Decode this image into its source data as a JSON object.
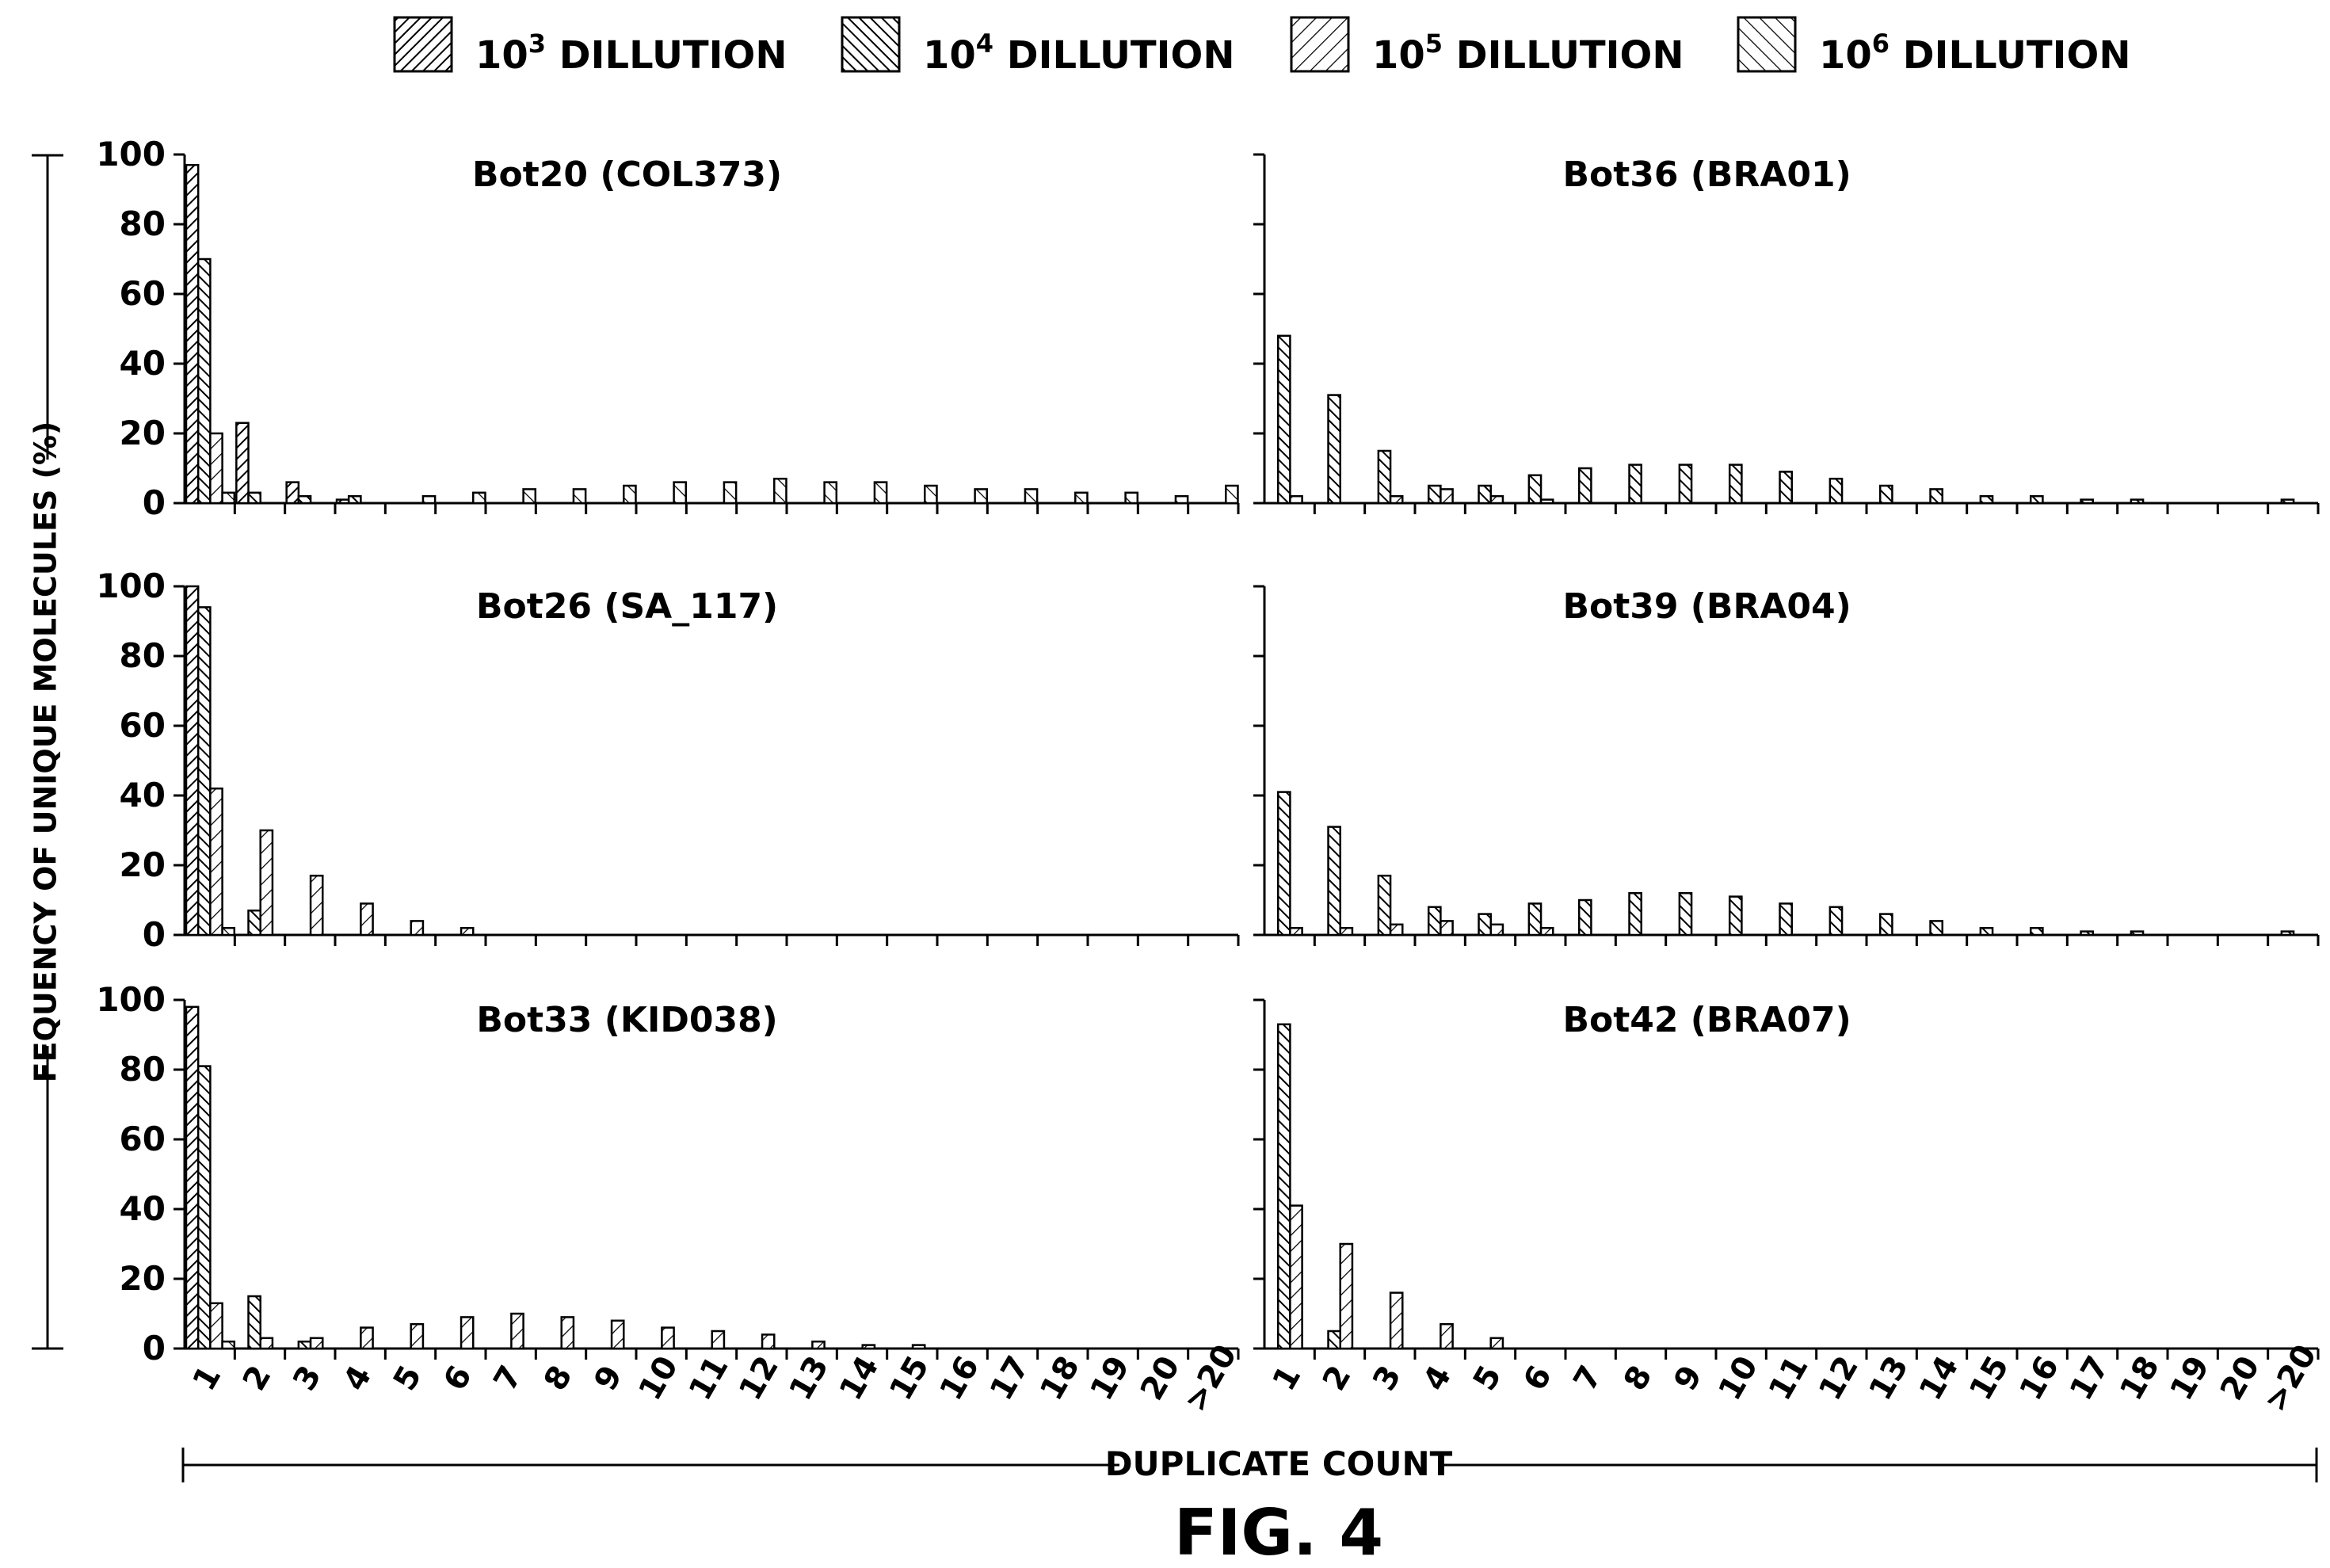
{
  "figure_label": "FIG. 4",
  "ylabel": "FEQUENCY OF UNIQUE MOLECULES (%)",
  "xlabel": "DUPLICATE COUNT",
  "legend": [
    {
      "base": "10",
      "exp": "3",
      "text": "DILLUTION"
    },
    {
      "base": "10",
      "exp": "4",
      "text": "DILLUTION"
    },
    {
      "base": "10",
      "exp": "5",
      "text": "DILLUTION"
    },
    {
      "base": "10",
      "exp": "6",
      "text": "DILLUTION"
    }
  ],
  "chart_data": [
    {
      "type": "bar",
      "title": "Bot20 (COL373)",
      "categories": [
        "1",
        "2",
        "3",
        "4",
        "5",
        "6",
        "7",
        "8",
        "9",
        "10",
        "11",
        "12",
        "13",
        "14",
        "15",
        "16",
        "17",
        "18",
        "19",
        "20",
        ">20"
      ],
      "yticks": [
        "0",
        "20",
        "40",
        "60",
        "80",
        "100"
      ],
      "ylim": [
        0,
        100
      ],
      "series": [
        {
          "name": "10^3 DILLUTION",
          "values": [
            97,
            23,
            6,
            1,
            0,
            0,
            0,
            0,
            0,
            0,
            0,
            0,
            0,
            0,
            0,
            0,
            0,
            0,
            0,
            0,
            0
          ]
        },
        {
          "name": "10^4 DILLUTION",
          "values": [
            70,
            3,
            2,
            2,
            0,
            0,
            0,
            0,
            0,
            0,
            0,
            0,
            0,
            0,
            0,
            0,
            0,
            0,
            0,
            0,
            0
          ]
        },
        {
          "name": "10^5 DILLUTION",
          "values": [
            20,
            0,
            0,
            0,
            0,
            0,
            0,
            0,
            0,
            0,
            0,
            0,
            0,
            0,
            0,
            0,
            0,
            0,
            0,
            0,
            0
          ]
        },
        {
          "name": "10^6 DILLUTION",
          "values": [
            3,
            0,
            0,
            0,
            2,
            3,
            4,
            4,
            5,
            6,
            6,
            7,
            6,
            6,
            5,
            4,
            4,
            3,
            3,
            2,
            5
          ]
        }
      ]
    },
    {
      "type": "bar",
      "title": "Bot36 (BRA01)",
      "categories": [
        "1",
        "2",
        "3",
        "4",
        "5",
        "6",
        "7",
        "8",
        "9",
        "10",
        "11",
        "12",
        "13",
        "14",
        "15",
        "16",
        "17",
        "18",
        "19",
        "20",
        ">20"
      ],
      "yticks": [],
      "ylim": [
        0,
        100
      ],
      "series": [
        {
          "name": "10^3 DILLUTION",
          "values": [
            0,
            0,
            0,
            0,
            0,
            0,
            0,
            0,
            0,
            0,
            0,
            0,
            0,
            0,
            0,
            0,
            0,
            0,
            0,
            0,
            0
          ]
        },
        {
          "name": "10^4 DILLUTION",
          "values": [
            48,
            31,
            15,
            5,
            5,
            8,
            10,
            11,
            11,
            11,
            9,
            7,
            5,
            4,
            2,
            2,
            1,
            1,
            0,
            0,
            1
          ]
        },
        {
          "name": "10^5 DILLUTION",
          "values": [
            2,
            0,
            2,
            4,
            2,
            1,
            0,
            0,
            0,
            0,
            0,
            0,
            0,
            0,
            0,
            0,
            0,
            0,
            0,
            0,
            0
          ]
        },
        {
          "name": "10^6 DILLUTION",
          "values": [
            0,
            0,
            0,
            0,
            0,
            0,
            0,
            0,
            0,
            0,
            0,
            0,
            0,
            0,
            0,
            0,
            0,
            0,
            0,
            0,
            0
          ]
        }
      ]
    },
    {
      "type": "bar",
      "title": "Bot26 (SA_117)",
      "categories": [
        "1",
        "2",
        "3",
        "4",
        "5",
        "6",
        "7",
        "8",
        "9",
        "10",
        "11",
        "12",
        "13",
        "14",
        "15",
        "16",
        "17",
        "18",
        "19",
        "20",
        ">20"
      ],
      "yticks": [
        "0",
        "20",
        "40",
        "60",
        "80",
        "100"
      ],
      "ylim": [
        0,
        100
      ],
      "series": [
        {
          "name": "10^3 DILLUTION",
          "values": [
            100,
            0,
            0,
            0,
            0,
            0,
            0,
            0,
            0,
            0,
            0,
            0,
            0,
            0,
            0,
            0,
            0,
            0,
            0,
            0,
            0
          ]
        },
        {
          "name": "10^4 DILLUTION",
          "values": [
            94,
            7,
            0,
            0,
            0,
            0,
            0,
            0,
            0,
            0,
            0,
            0,
            0,
            0,
            0,
            0,
            0,
            0,
            0,
            0,
            0
          ]
        },
        {
          "name": "10^5 DILLUTION",
          "values": [
            42,
            30,
            17,
            9,
            4,
            2,
            0,
            0,
            0,
            0,
            0,
            0,
            0,
            0,
            0,
            0,
            0,
            0,
            0,
            0,
            0
          ]
        },
        {
          "name": "10^6 DILLUTION",
          "values": [
            2,
            0,
            0,
            0,
            0,
            0,
            0,
            0,
            0,
            0,
            0,
            0,
            0,
            0,
            0,
            0,
            0,
            0,
            0,
            0,
            0
          ]
        }
      ]
    },
    {
      "type": "bar",
      "title": "Bot39 (BRA04)",
      "categories": [
        "1",
        "2",
        "3",
        "4",
        "5",
        "6",
        "7",
        "8",
        "9",
        "10",
        "11",
        "12",
        "13",
        "14",
        "15",
        "16",
        "17",
        "18",
        "19",
        "20",
        ">20"
      ],
      "yticks": [],
      "ylim": [
        0,
        100
      ],
      "series": [
        {
          "name": "10^3 DILLUTION",
          "values": [
            0,
            0,
            0,
            0,
            0,
            0,
            0,
            0,
            0,
            0,
            0,
            0,
            0,
            0,
            0,
            0,
            0,
            0,
            0,
            0,
            0
          ]
        },
        {
          "name": "10^4 DILLUTION",
          "values": [
            41,
            31,
            17,
            8,
            6,
            9,
            10,
            12,
            12,
            11,
            9,
            8,
            6,
            4,
            2,
            2,
            1,
            1,
            0,
            0,
            1
          ]
        },
        {
          "name": "10^5 DILLUTION",
          "values": [
            2,
            2,
            3,
            4,
            3,
            2,
            0,
            0,
            0,
            0,
            0,
            0,
            0,
            0,
            0,
            0,
            0,
            0,
            0,
            0,
            0
          ]
        },
        {
          "name": "10^6 DILLUTION",
          "values": [
            0,
            0,
            0,
            0,
            0,
            0,
            0,
            0,
            0,
            0,
            0,
            0,
            0,
            0,
            0,
            0,
            0,
            0,
            0,
            0,
            0
          ]
        }
      ]
    },
    {
      "type": "bar",
      "title": "Bot33 (KID038)",
      "categories": [
        "1",
        "2",
        "3",
        "4",
        "5",
        "6",
        "7",
        "8",
        "9",
        "10",
        "11",
        "12",
        "13",
        "14",
        "15",
        "16",
        "17",
        "18",
        "19",
        "20",
        ">20"
      ],
      "yticks": [
        "0",
        "20",
        "40",
        "60",
        "80",
        "100"
      ],
      "ylim": [
        0,
        100
      ],
      "series": [
        {
          "name": "10^3 DILLUTION",
          "values": [
            98,
            0,
            0,
            0,
            0,
            0,
            0,
            0,
            0,
            0,
            0,
            0,
            0,
            0,
            0,
            0,
            0,
            0,
            0,
            0,
            0
          ]
        },
        {
          "name": "10^4 DILLUTION",
          "values": [
            81,
            15,
            2,
            0,
            0,
            0,
            0,
            0,
            0,
            0,
            0,
            0,
            0,
            0,
            0,
            0,
            0,
            0,
            0,
            0,
            0
          ]
        },
        {
          "name": "10^5 DILLUTION",
          "values": [
            13,
            3,
            3,
            6,
            7,
            9,
            10,
            9,
            8,
            6,
            5,
            4,
            2,
            1,
            1,
            0,
            0,
            0,
            0,
            0,
            0
          ]
        },
        {
          "name": "10^6 DILLUTION",
          "values": [
            2,
            0,
            0,
            0,
            0,
            0,
            0,
            0,
            0,
            0,
            0,
            0,
            0,
            0,
            0,
            0,
            0,
            0,
            0,
            0,
            0
          ]
        }
      ]
    },
    {
      "type": "bar",
      "title": "Bot42 (BRA07)",
      "categories": [
        "1",
        "2",
        "3",
        "4",
        "5",
        "6",
        "7",
        "8",
        "9",
        "10",
        "11",
        "12",
        "13",
        "14",
        "15",
        "16",
        "17",
        "18",
        "19",
        "20",
        ">20"
      ],
      "yticks": [],
      "ylim": [
        0,
        100
      ],
      "series": [
        {
          "name": "10^3 DILLUTION",
          "values": [
            0,
            0,
            0,
            0,
            0,
            0,
            0,
            0,
            0,
            0,
            0,
            0,
            0,
            0,
            0,
            0,
            0,
            0,
            0,
            0,
            0
          ]
        },
        {
          "name": "10^4 DILLUTION",
          "values": [
            93,
            5,
            0,
            0,
            0,
            0,
            0,
            0,
            0,
            0,
            0,
            0,
            0,
            0,
            0,
            0,
            0,
            0,
            0,
            0,
            0
          ]
        },
        {
          "name": "10^5 DILLUTION",
          "values": [
            41,
            30,
            16,
            7,
            3,
            0,
            0,
            0,
            0,
            0,
            0,
            0,
            0,
            0,
            0,
            0,
            0,
            0,
            0,
            0,
            0
          ]
        },
        {
          "name": "10^6 DILLUTION",
          "values": [
            0,
            0,
            0,
            0,
            0,
            0,
            0,
            0,
            0,
            0,
            0,
            0,
            0,
            0,
            0,
            0,
            0,
            0,
            0,
            0,
            0
          ]
        }
      ]
    }
  ]
}
